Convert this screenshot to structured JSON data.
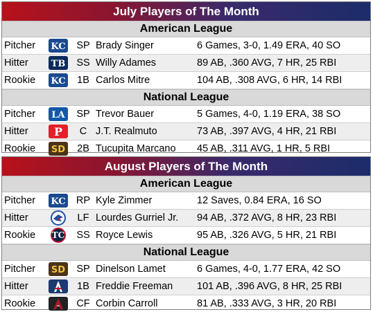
{
  "colors": {
    "title_start": "#b7121b",
    "title_end": "#1c2c6a",
    "league_bg": "#d9d9d9",
    "row_alt_bg": "#eeeeee"
  },
  "panels": [
    {
      "title": "July Players of The Month",
      "leagues": [
        {
          "name": "American League",
          "rows": [
            {
              "role": "Pitcher",
              "logo": "royals-logo",
              "pos": "SP",
              "player": "Brady Singer",
              "stats": "6 Games, 3-0, 1.49 ERA, 40 SO"
            },
            {
              "role": "Hitter",
              "logo": "rays-logo",
              "pos": "SS",
              "player": "Willy Adames",
              "stats": "89 AB, .360 AVG, 7 HR, 25 RBI"
            },
            {
              "role": "Rookie",
              "logo": "royals-logo",
              "pos": "1B",
              "player": "Carlos Mitre",
              "stats": "104 AB, .308 AVG, 6 HR, 14 RBI"
            }
          ]
        },
        {
          "name": "National League",
          "rows": [
            {
              "role": "Pitcher",
              "logo": "dodgers-logo",
              "pos": "SP",
              "player": "Trevor Bauer",
              "stats": "5 Games, 4-0, 1.19 ERA, 38 SO"
            },
            {
              "role": "Hitter",
              "logo": "phillies-logo",
              "pos": "C",
              "player": "J.T. Realmuto",
              "stats": "73 AB, .397 AVG, 4 HR, 21 RBI"
            },
            {
              "role": "Rookie",
              "logo": "padres-logo",
              "pos": "2B",
              "player": "Tucupita Marcano",
              "stats": "45 AB, .311 AVG, 1 HR, 5 RBI"
            }
          ]
        }
      ]
    },
    {
      "title": "August Players of The Month",
      "leagues": [
        {
          "name": "American League",
          "rows": [
            {
              "role": "Pitcher",
              "logo": "royals-logo",
              "pos": "RP",
              "player": "Kyle Zimmer",
              "stats": "12 Saves, 0.84 ERA, 16 SO"
            },
            {
              "role": "Hitter",
              "logo": "blue-jays-logo",
              "pos": "LF",
              "player": "Lourdes Gurriel Jr.",
              "stats": "94 AB, .372 AVG, 8 HR, 23 RBI"
            },
            {
              "role": "Rookie",
              "logo": "twins-logo",
              "pos": "SS",
              "player": "Royce Lewis",
              "stats": "95 AB, .326 AVG, 5 HR, 21 RBI"
            }
          ]
        },
        {
          "name": "National League",
          "rows": [
            {
              "role": "Pitcher",
              "logo": "padres-logo",
              "pos": "SP",
              "player": "Dinelson Lamet",
              "stats": "6 Games, 4-0, 1.77 ERA, 42 SO"
            },
            {
              "role": "Hitter",
              "logo": "braves-logo",
              "pos": "1B",
              "player": "Freddie Freeman",
              "stats": "101 AB, .396 AVG, 8 HR, 25 RBI"
            },
            {
              "role": "Rookie",
              "logo": "diamondbacks-logo",
              "pos": "CF",
              "player": "Corbin Carroll",
              "stats": "81 AB, .333 AVG, 3 HR, 20 RBI"
            }
          ]
        }
      ]
    }
  ]
}
